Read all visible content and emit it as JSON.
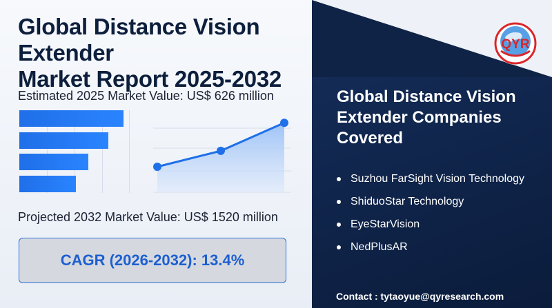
{
  "header": {
    "title_line1": "Global Distance Vision Extender",
    "title_line2": "Market Report 2025-2032"
  },
  "logo": {
    "text": "QYR",
    "icon": "globe-logo-icon"
  },
  "estimated_value": "Estimated 2025 Market Value: US$ 626 million",
  "projected_value": "Projected 2032 Market Value: US$ 1520 million",
  "cagr": "CAGR (2026-2032): 13.4%",
  "companies": {
    "title_line1": "Global Distance Vision",
    "title_line2": "Extender Companies",
    "title_line3": "Covered",
    "items": [
      "Suzhou FarSight Vision Technology",
      "ShiduoStar Technology",
      "EyeStarVision",
      "NedPlusAR"
    ]
  },
  "contact": "Contact : tytaoyue@qyresearch.com",
  "colors": {
    "accent": "#2a84ff",
    "navy": "#0f2347",
    "title": "#0d1f3c",
    "cagr_text": "#1d5fd0",
    "logo_red": "#d9262b"
  },
  "decor": {
    "bar_fill_fractions": [
      0.96,
      0.82,
      0.64,
      0.52
    ],
    "line_points": [
      0.0,
      0.25,
      0.69
    ]
  }
}
